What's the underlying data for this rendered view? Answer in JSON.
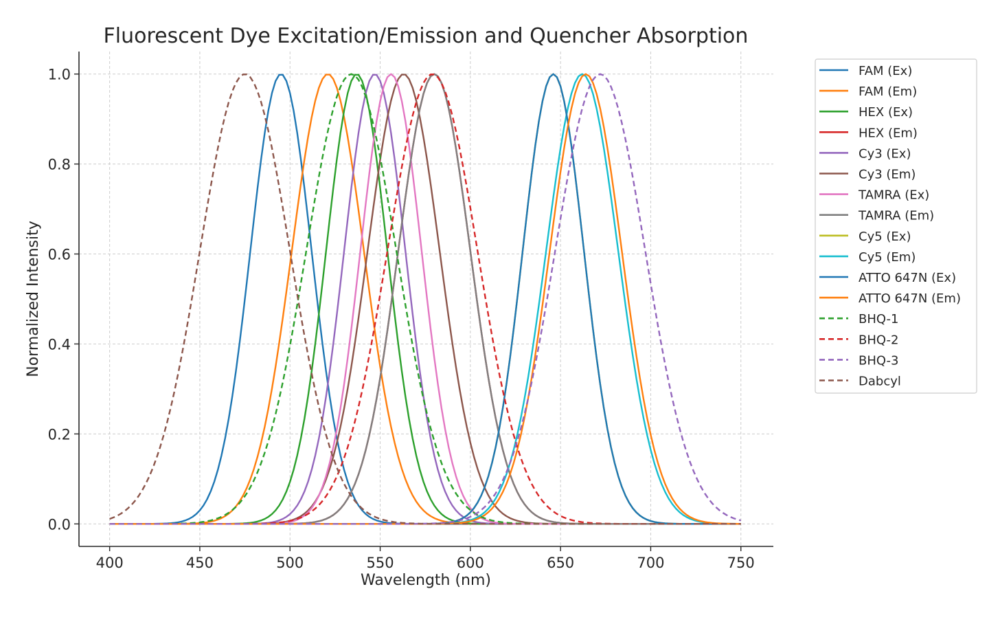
{
  "chart_data": {
    "type": "line",
    "title": "Fluorescent Dye Excitation/Emission and Quencher Absorption",
    "xlabel": "Wavelength (nm)",
    "ylabel": "Normalized Intensity",
    "xlim": [
      383,
      768
    ],
    "ylim": [
      -0.05,
      1.05
    ],
    "xticks": [
      400,
      450,
      500,
      550,
      600,
      650,
      700,
      750
    ],
    "yticks": [
      0.0,
      0.2,
      0.4,
      0.6,
      0.8,
      1.0
    ],
    "xtick_labels": [
      "400",
      "450",
      "500",
      "550",
      "600",
      "650",
      "700",
      "750"
    ],
    "ytick_labels": [
      "0.0",
      "0.2",
      "0.4",
      "0.6",
      "0.8",
      "1.0"
    ],
    "grid": true,
    "legend_position": "outside-right",
    "x_range": [
      400,
      750
    ],
    "x_step": 2,
    "curve_shape": "gaussian",
    "series": [
      {
        "name": "FAM (Ex)",
        "peak": 495,
        "sigma": 17,
        "color": "#1f77b4",
        "style": "solid"
      },
      {
        "name": "FAM (Em)",
        "peak": 521,
        "sigma": 20,
        "color": "#ff7f0e",
        "style": "solid"
      },
      {
        "name": "HEX (Ex)",
        "peak": 537,
        "sigma": 17,
        "color": "#2ca02c",
        "style": "solid"
      },
      {
        "name": "HEX (Em)",
        "peak": 580,
        "sigma": 20,
        "color": "#d62728",
        "style": "solid"
      },
      {
        "name": "Cy3 (Ex)",
        "peak": 547,
        "sigma": 17,
        "color": "#9467bd",
        "style": "solid"
      },
      {
        "name": "Cy3 (Em)",
        "peak": 563,
        "sigma": 20,
        "color": "#8c564b",
        "style": "solid"
      },
      {
        "name": "TAMRA (Ex)",
        "peak": 556,
        "sigma": 17,
        "color": "#e377c2",
        "style": "solid"
      },
      {
        "name": "TAMRA (Em)",
        "peak": 580,
        "sigma": 20,
        "color": "#7f7f7f",
        "style": "solid"
      },
      {
        "name": "Cy5 (Ex)",
        "peak": 646,
        "sigma": 17,
        "color": "#bcbd22",
        "style": "solid"
      },
      {
        "name": "Cy5 (Em)",
        "peak": 662,
        "sigma": 20,
        "color": "#17becf",
        "style": "solid"
      },
      {
        "name": "ATTO 647N (Ex)",
        "peak": 646,
        "sigma": 17,
        "color": "#1f77b4",
        "style": "solid"
      },
      {
        "name": "ATTO 647N (Em)",
        "peak": 664,
        "sigma": 20,
        "color": "#ff7f0e",
        "style": "solid"
      },
      {
        "name": "BHQ-1",
        "peak": 534,
        "sigma": 25,
        "color": "#2ca02c",
        "style": "dashed"
      },
      {
        "name": "BHQ-2",
        "peak": 579,
        "sigma": 25,
        "color": "#d62728",
        "style": "dashed"
      },
      {
        "name": "BHQ-3",
        "peak": 672,
        "sigma": 25,
        "color": "#9467bd",
        "style": "dashed"
      },
      {
        "name": "Dabcyl",
        "peak": 475,
        "sigma": 25,
        "color": "#8c564b",
        "style": "dashed"
      }
    ]
  }
}
